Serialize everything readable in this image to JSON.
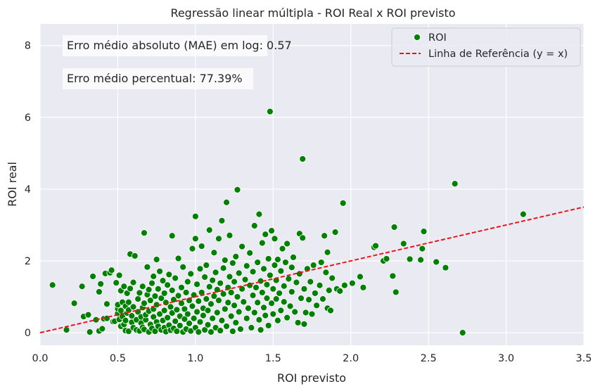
{
  "chart_data": {
    "type": "scatter",
    "title": "Regressão linear múltipla - ROI Real x ROI previsto",
    "xlabel": "ROI previsto",
    "ylabel": "ROI real",
    "xlim": [
      0.0,
      3.5
    ],
    "ylim": [
      -0.35,
      8.6
    ],
    "xticks": [
      "0.0",
      "0.5",
      "1.0",
      "1.5",
      "2.0",
      "2.5",
      "3.0",
      "3.5"
    ],
    "yticks": [
      "0",
      "2",
      "4",
      "6",
      "8"
    ],
    "grid": true,
    "legend_position": "top-right",
    "colors": {
      "points": "#008000",
      "reference": "#e8161b",
      "background": "#eaeaf2",
      "grid": "#ffffff"
    },
    "annotations": [
      "Erro médio absoluto (MAE) em log: 0.57",
      "Erro médio percentual: 77.39%"
    ],
    "series": [
      {
        "name": "ROI",
        "points": [
          [
            0.08,
            1.33
          ],
          [
            0.17,
            0.08
          ],
          [
            0.22,
            0.82
          ],
          [
            0.27,
            1.29
          ],
          [
            0.28,
            0.45
          ],
          [
            0.31,
            0.5
          ],
          [
            0.32,
            0.02
          ],
          [
            0.34,
            1.57
          ],
          [
            0.36,
            0.36
          ],
          [
            0.38,
            0.05
          ],
          [
            0.38,
            1.14
          ],
          [
            0.39,
            1.36
          ],
          [
            0.4,
            0.11
          ],
          [
            0.41,
            0.39
          ],
          [
            0.42,
            1.65
          ],
          [
            0.43,
            0.4
          ],
          [
            0.43,
            0.8
          ],
          [
            0.45,
            1.67
          ],
          [
            0.46,
            1.74
          ],
          [
            0.47,
            0.31
          ],
          [
            0.48,
            0.32
          ],
          [
            0.49,
            1.39
          ],
          [
            0.5,
            0.54
          ],
          [
            0.5,
            0.67
          ],
          [
            0.5,
            0.78
          ],
          [
            0.51,
            0.37
          ],
          [
            0.51,
            1.6
          ],
          [
            0.52,
            0.18
          ],
          [
            0.52,
            0.62
          ],
          [
            0.52,
            1.17
          ],
          [
            0.53,
            0.45
          ],
          [
            0.53,
            0.85
          ],
          [
            0.54,
            0.23
          ],
          [
            0.54,
            1.29
          ],
          [
            0.55,
            0.06
          ],
          [
            0.55,
            0.34
          ],
          [
            0.55,
            0.74
          ],
          [
            0.56,
            0.55
          ],
          [
            0.56,
            1.1
          ],
          [
            0.57,
            0.04
          ],
          [
            0.57,
            0.63
          ],
          [
            0.57,
            0.85
          ],
          [
            0.58,
            1.23
          ],
          [
            0.58,
            2.19
          ],
          [
            0.59,
            0.29
          ],
          [
            0.59,
            0.47
          ],
          [
            0.6,
            0.14
          ],
          [
            0.6,
            0.72
          ],
          [
            0.6,
            1.4
          ],
          [
            0.61,
            2.14
          ],
          [
            0.62,
            0.08
          ],
          [
            0.62,
            0.36
          ],
          [
            0.63,
            0.58
          ],
          [
            0.63,
            0.94
          ],
          [
            0.64,
            0.05
          ],
          [
            0.64,
            1.11
          ],
          [
            0.65,
            0.27
          ],
          [
            0.65,
            0.44
          ],
          [
            0.66,
            0.15
          ],
          [
            0.66,
            0.7
          ],
          [
            0.66,
            1.29
          ],
          [
            0.67,
            0.09
          ],
          [
            0.67,
            0.82
          ],
          [
            0.67,
            2.78
          ],
          [
            0.68,
            0.36
          ],
          [
            0.68,
            0.5
          ],
          [
            0.69,
            1.06
          ],
          [
            0.69,
            1.83
          ],
          [
            0.7,
            0.02
          ],
          [
            0.7,
            0.6
          ],
          [
            0.7,
            1.2
          ],
          [
            0.71,
            0.23
          ],
          [
            0.71,
            0.9
          ],
          [
            0.72,
            0.12
          ],
          [
            0.72,
            1.38
          ],
          [
            0.73,
            0.44
          ],
          [
            0.73,
            0.66
          ],
          [
            0.73,
            1.57
          ],
          [
            0.74,
            0.04
          ],
          [
            0.74,
            1.02
          ],
          [
            0.75,
            0.3
          ],
          [
            0.75,
            0.78
          ],
          [
            0.75,
            2.04
          ],
          [
            0.76,
            0.18
          ],
          [
            0.76,
            1.22
          ],
          [
            0.77,
            0.52
          ],
          [
            0.77,
            1.71
          ],
          [
            0.78,
            0.08
          ],
          [
            0.78,
            0.96
          ],
          [
            0.79,
            0.34
          ],
          [
            0.79,
            1.45
          ],
          [
            0.8,
            0.14
          ],
          [
            0.8,
            0.62
          ],
          [
            0.8,
            1.1
          ],
          [
            0.81,
            0.03
          ],
          [
            0.81,
            0.84
          ],
          [
            0.82,
            0.42
          ],
          [
            0.82,
            1.33
          ],
          [
            0.83,
            0.21
          ],
          [
            0.83,
            1.62
          ],
          [
            0.84,
            0.07
          ],
          [
            0.84,
            0.72
          ],
          [
            0.85,
            0.55
          ],
          [
            0.85,
            1.18
          ],
          [
            0.85,
            2.7
          ],
          [
            0.86,
            0.12
          ],
          [
            0.86,
            0.92
          ],
          [
            0.87,
            0.32
          ],
          [
            0.87,
            1.52
          ],
          [
            0.88,
            0.04
          ],
          [
            0.88,
            0.64
          ],
          [
            0.89,
            1.03
          ],
          [
            0.89,
            2.07
          ],
          [
            0.9,
            0.2
          ],
          [
            0.9,
            0.46
          ],
          [
            0.91,
            1.26
          ],
          [
            0.91,
            0.82
          ],
          [
            0.92,
            0.02
          ],
          [
            0.92,
            1.83
          ],
          [
            0.93,
            0.38
          ],
          [
            0.93,
            0.66
          ],
          [
            0.94,
            0.1
          ],
          [
            0.94,
            1.12
          ],
          [
            0.95,
            0.52
          ],
          [
            0.95,
            1.42
          ],
          [
            0.96,
            0.26
          ],
          [
            0.96,
            0.9
          ],
          [
            0.97,
            0.05
          ],
          [
            0.97,
            1.64
          ],
          [
            0.98,
            0.74
          ],
          [
            0.98,
            2.34
          ],
          [
            0.99,
            0.4
          ],
          [
            0.99,
            1.05
          ],
          [
            1.0,
            0.14
          ],
          [
            1.0,
            2.62
          ],
          [
            1.0,
            3.24
          ],
          [
            1.01,
            0.58
          ],
          [
            1.01,
            1.35
          ],
          [
            1.02,
            0.02
          ],
          [
            1.02,
            0.88
          ],
          [
            1.03,
            1.78
          ],
          [
            1.03,
            0.3
          ],
          [
            1.04,
            1.12
          ],
          [
            1.04,
            2.41
          ],
          [
            1.05,
            0.48
          ],
          [
            1.05,
            0.68
          ],
          [
            1.06,
            0.08
          ],
          [
            1.06,
            1.55
          ],
          [
            1.07,
            0.94
          ],
          [
            1.07,
            1.88
          ],
          [
            1.08,
            0.22
          ],
          [
            1.08,
            0.62
          ],
          [
            1.09,
            1.28
          ],
          [
            1.09,
            2.86
          ],
          [
            1.1,
            0.02
          ],
          [
            1.1,
            0.8
          ],
          [
            1.11,
            1.46
          ],
          [
            1.11,
            0.4
          ],
          [
            1.12,
            2.23
          ],
          [
            1.12,
            1.02
          ],
          [
            1.13,
            0.14
          ],
          [
            1.13,
            1.68
          ],
          [
            1.14,
            0.56
          ],
          [
            1.14,
            1.2
          ],
          [
            1.15,
            2.62
          ],
          [
            1.15,
            0.9
          ],
          [
            1.16,
            0.06
          ],
          [
            1.16,
            1.38
          ],
          [
            1.17,
            0.34
          ],
          [
            1.17,
            3.12
          ],
          [
            1.18,
            1.08
          ],
          [
            1.18,
            1.8
          ],
          [
            1.19,
            0.66
          ],
          [
            1.19,
            2.02
          ],
          [
            1.2,
            0.18
          ],
          [
            1.2,
            3.63
          ],
          [
            1.21,
            1.26
          ],
          [
            1.21,
            0.84
          ],
          [
            1.22,
            1.56
          ],
          [
            1.22,
            2.71
          ],
          [
            1.23,
            0.46
          ],
          [
            1.23,
            1.12
          ],
          [
            1.24,
            0.04
          ],
          [
            1.24,
            1.94
          ],
          [
            1.25,
            0.76
          ],
          [
            1.25,
            1.42
          ],
          [
            1.26,
            0.28
          ],
          [
            1.26,
            2.12
          ],
          [
            1.27,
            1.0
          ],
          [
            1.27,
            3.98
          ],
          [
            1.28,
            0.58
          ],
          [
            1.28,
            1.66
          ],
          [
            1.29,
            0.1
          ],
          [
            1.3,
            1.22
          ],
          [
            1.3,
            2.4
          ],
          [
            1.31,
            0.86
          ],
          [
            1.32,
            1.48
          ],
          [
            1.33,
            0.4
          ],
          [
            1.33,
            1.86
          ],
          [
            1.34,
            0.68
          ],
          [
            1.35,
            1.32
          ],
          [
            1.35,
            2.22
          ],
          [
            1.36,
            0.14
          ],
          [
            1.37,
            1.04
          ],
          [
            1.37,
            1.7
          ],
          [
            1.38,
            0.56
          ],
          [
            1.38,
            2.98
          ],
          [
            1.39,
            1.26
          ],
          [
            1.4,
            0.84
          ],
          [
            1.4,
            1.96
          ],
          [
            1.41,
            3.3
          ],
          [
            1.41,
            0.36
          ],
          [
            1.42,
            1.44
          ],
          [
            1.42,
            0.08
          ],
          [
            1.43,
            2.5
          ],
          [
            1.43,
            1.12
          ],
          [
            1.44,
            0.7
          ],
          [
            1.44,
            1.78
          ],
          [
            1.45,
            2.74
          ],
          [
            1.45,
            0.48
          ],
          [
            1.46,
            1.34
          ],
          [
            1.46,
            0.96
          ],
          [
            1.47,
            2.06
          ],
          [
            1.47,
            0.2
          ],
          [
            1.48,
            6.16
          ],
          [
            1.48,
            1.6
          ],
          [
            1.49,
            0.82
          ],
          [
            1.49,
            2.84
          ],
          [
            1.5,
            1.22
          ],
          [
            1.5,
            0.52
          ],
          [
            1.51,
            1.88
          ],
          [
            1.51,
            2.62
          ],
          [
            1.52,
            0.94
          ],
          [
            1.52,
            1.46
          ],
          [
            1.53,
            0.34
          ],
          [
            1.53,
            2.04
          ],
          [
            1.54,
            1.1
          ],
          [
            1.55,
            1.72
          ],
          [
            1.55,
            0.62
          ],
          [
            1.56,
            2.34
          ],
          [
            1.57,
            1.3
          ],
          [
            1.57,
            0.86
          ],
          [
            1.58,
            1.96
          ],
          [
            1.59,
            0.42
          ],
          [
            1.59,
            2.48
          ],
          [
            1.6,
            1.5
          ],
          [
            1.61,
            0.74
          ],
          [
            1.62,
            1.82
          ],
          [
            1.62,
            1.14
          ],
          [
            1.63,
            2.1
          ],
          [
            1.64,
            0.58
          ],
          [
            1.65,
            1.4
          ],
          [
            1.66,
            0.28
          ],
          [
            1.67,
            2.76
          ],
          [
            1.67,
            1.64
          ],
          [
            1.68,
            0.96
          ],
          [
            1.69,
            4.84
          ],
          [
            1.69,
            2.64
          ],
          [
            1.7,
            0.24
          ],
          [
            1.7,
            1.22
          ],
          [
            1.71,
            0.56
          ],
          [
            1.72,
            1.78
          ],
          [
            1.73,
            0.92
          ],
          [
            1.74,
            1.42
          ],
          [
            1.75,
            0.52
          ],
          [
            1.76,
            1.88
          ],
          [
            1.77,
            1.1
          ],
          [
            1.78,
            0.76
          ],
          [
            1.8,
            1.32
          ],
          [
            1.81,
            1.96
          ],
          [
            1.82,
            0.94
          ],
          [
            1.83,
            2.7
          ],
          [
            1.84,
            1.68
          ],
          [
            1.85,
            0.68
          ],
          [
            1.85,
            2.24
          ],
          [
            1.86,
            1.18
          ],
          [
            1.87,
            0.62
          ],
          [
            1.88,
            1.52
          ],
          [
            1.9,
            2.8
          ],
          [
            1.91,
            1.22
          ],
          [
            1.93,
            1.16
          ],
          [
            1.95,
            3.61
          ],
          [
            1.96,
            1.32
          ],
          [
            2.01,
            1.38
          ],
          [
            2.06,
            1.56
          ],
          [
            2.08,
            1.26
          ],
          [
            2.15,
            2.38
          ],
          [
            2.16,
            2.42
          ],
          [
            2.21,
            2.0
          ],
          [
            2.23,
            2.06
          ],
          [
            2.27,
            1.58
          ],
          [
            2.28,
            2.94
          ],
          [
            2.29,
            1.13
          ],
          [
            2.34,
            2.48
          ],
          [
            2.38,
            2.05
          ],
          [
            2.45,
            2.03
          ],
          [
            2.46,
            2.34
          ],
          [
            2.47,
            2.82
          ],
          [
            2.55,
            1.97
          ],
          [
            2.61,
            1.81
          ],
          [
            2.67,
            4.15
          ],
          [
            2.72,
            0.0
          ],
          [
            3.11,
            3.3
          ]
        ]
      },
      {
        "name": "Linha de Referência (y = x)",
        "points": [
          [
            0.0,
            0.0
          ],
          [
            3.5,
            3.5
          ]
        ]
      }
    ]
  }
}
